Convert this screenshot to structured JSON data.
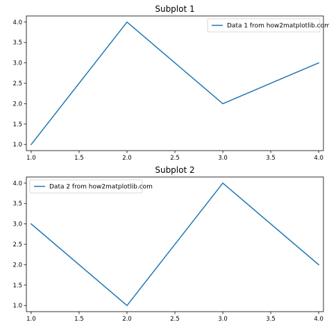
{
  "chart_data": [
    {
      "type": "line",
      "title": "Subplot 1",
      "xlabel": "",
      "ylabel": "",
      "x": [
        1,
        2,
        3,
        4
      ],
      "series": [
        {
          "name": "Data 1 from how2matplotlib.com",
          "values": [
            1,
            4,
            2,
            3
          ],
          "color": "#1f77b4"
        }
      ],
      "xlim": [
        0.95,
        4.05
      ],
      "ylim": [
        0.85,
        4.15
      ],
      "xticks": [
        1.0,
        1.5,
        2.0,
        2.5,
        3.0,
        3.5,
        4.0
      ],
      "yticks": [
        1.0,
        1.5,
        2.0,
        2.5,
        3.0,
        3.5,
        4.0
      ],
      "xtick_labels": [
        "1.0",
        "1.5",
        "2.0",
        "2.5",
        "3.0",
        "3.5",
        "4.0"
      ],
      "ytick_labels": [
        "1.0",
        "1.5",
        "2.0",
        "2.5",
        "3.0",
        "3.5",
        "4.0"
      ],
      "legend_position": "top-right",
      "grid": false
    },
    {
      "type": "line",
      "title": "Subplot 2",
      "xlabel": "",
      "ylabel": "",
      "x": [
        1,
        2,
        3,
        4
      ],
      "series": [
        {
          "name": "Data 2 from how2matplotlib.com",
          "values": [
            3,
            1,
            4,
            2
          ],
          "color": "#1f77b4"
        }
      ],
      "xlim": [
        0.95,
        4.05
      ],
      "ylim": [
        0.85,
        4.15
      ],
      "xticks": [
        1.0,
        1.5,
        2.0,
        2.5,
        3.0,
        3.5,
        4.0
      ],
      "yticks": [
        1.0,
        1.5,
        2.0,
        2.5,
        3.0,
        3.5,
        4.0
      ],
      "xtick_labels": [
        "1.0",
        "1.5",
        "2.0",
        "2.5",
        "3.0",
        "3.5",
        "4.0"
      ],
      "ytick_labels": [
        "1.0",
        "1.5",
        "2.0",
        "2.5",
        "3.0",
        "3.5",
        "4.0"
      ],
      "legend_position": "top-left",
      "grid": false
    }
  ]
}
